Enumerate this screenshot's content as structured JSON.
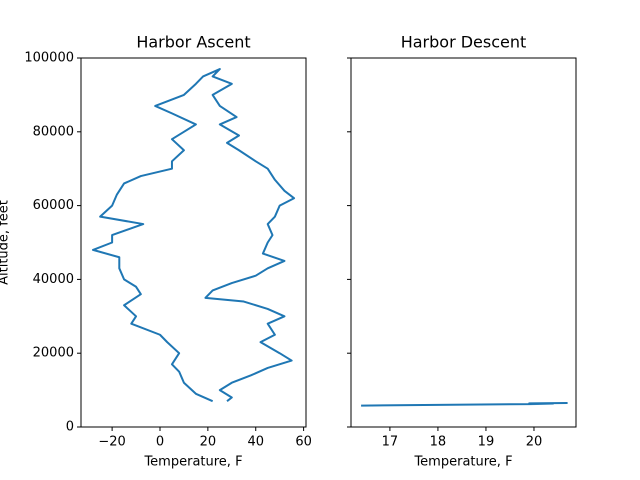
{
  "chart_data": [
    {
      "type": "line",
      "title": "Harbor Ascent",
      "xlabel": "Temperature, F",
      "ylabel": "Altitude, feet",
      "color": "#1f77b4",
      "x": [
        22,
        15,
        10,
        8,
        5,
        8,
        3,
        0,
        -12,
        -10,
        -15,
        -8,
        -10,
        -15,
        -17,
        -17,
        -28,
        -20,
        -20,
        -7,
        -25,
        -20,
        -18,
        -15,
        -8,
        5,
        5,
        10,
        5,
        10,
        15,
        5,
        -2,
        10,
        15,
        18,
        25,
        22,
        30,
        22,
        25,
        32,
        25,
        33,
        28,
        33,
        40,
        45,
        48,
        52,
        56,
        50,
        48,
        45,
        47,
        45,
        43,
        52,
        45,
        40,
        30,
        22,
        19,
        35,
        45,
        52,
        45,
        48,
        42,
        50,
        55,
        45,
        38,
        30,
        25,
        30,
        28
      ],
      "values": [
        7000,
        9000,
        12000,
        15000,
        17000,
        20000,
        23000,
        25000,
        28000,
        30000,
        33000,
        36000,
        38000,
        40000,
        43000,
        46000,
        48000,
        50000,
        52000,
        55000,
        57000,
        60000,
        63000,
        66000,
        68000,
        70000,
        72000,
        75000,
        78000,
        80000,
        82000,
        85000,
        87000,
        90000,
        93000,
        95000,
        97000,
        95000,
        93000,
        90000,
        87000,
        84000,
        82000,
        79000,
        77000,
        75000,
        72000,
        70000,
        67000,
        64000,
        62000,
        60000,
        57000,
        55000,
        52000,
        50000,
        47000,
        45000,
        43000,
        41000,
        39000,
        37000,
        35000,
        34000,
        32000,
        30000,
        28000,
        25000,
        23000,
        20000,
        18000,
        16000,
        14000,
        12000,
        10000,
        8000,
        7000
      ],
      "xlim": [
        -33,
        61
      ],
      "ylim": [
        0,
        100000
      ],
      "xticks": [
        {
          "value": -20,
          "label": "−20"
        },
        0,
        20,
        40,
        60
      ],
      "yticks": [
        0,
        20000,
        40000,
        60000,
        80000,
        100000
      ]
    },
    {
      "type": "line",
      "title": "Harbor Descent",
      "xlabel": "Temperature, F",
      "color": "#1f77b4",
      "x": [
        16.4,
        19.9,
        20.4,
        19.9,
        20.7
      ],
      "values": [
        5800,
        6200,
        6300,
        6400,
        6500
      ],
      "xlim": [
        16.19,
        20.875
      ],
      "ylim": [
        0,
        100000
      ],
      "xticks": [
        17,
        18,
        19,
        20
      ],
      "yticks": [
        0,
        20000,
        40000,
        60000,
        80000,
        100000
      ]
    }
  ]
}
